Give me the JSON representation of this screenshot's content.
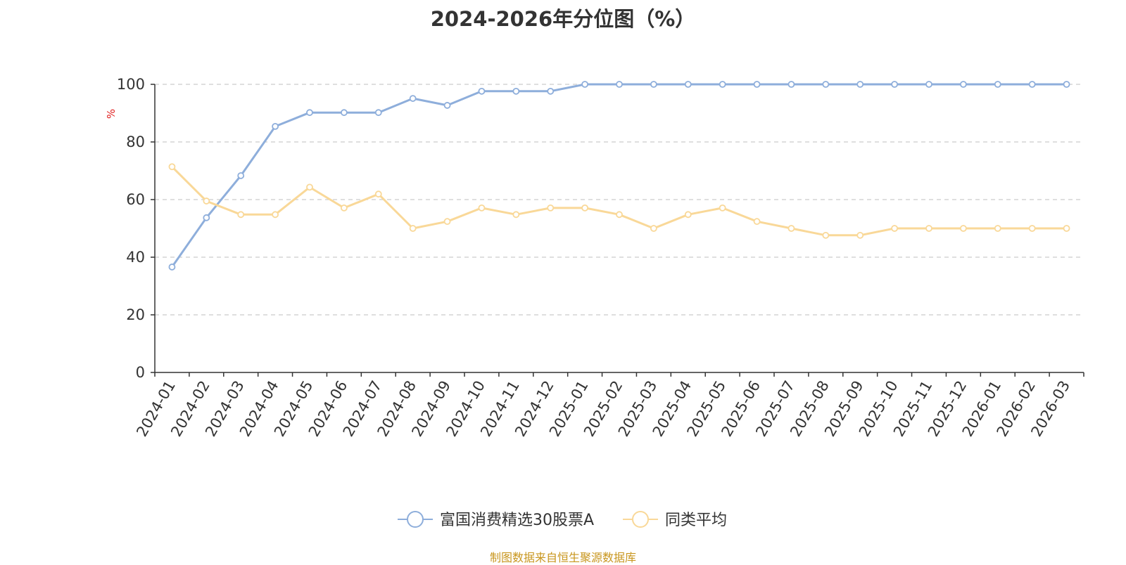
{
  "chart_data": {
    "type": "line",
    "title": "2024-2026年分位图（%）",
    "ylabel": "%",
    "xlabel": "",
    "ylim": [
      0,
      100
    ],
    "yticks": [
      0,
      20,
      40,
      60,
      80,
      100
    ],
    "grid": "horizontal dashed",
    "legend_position": "bottom",
    "categories": [
      "2024-01",
      "2024-02",
      "2024-03",
      "2024-04",
      "2024-05",
      "2024-06",
      "2024-07",
      "2024-08",
      "2024-09",
      "2024-10",
      "2024-11",
      "2024-12",
      "2025-01",
      "2025-02",
      "2025-03",
      "2025-04",
      "2025-05",
      "2025-06",
      "2025-07",
      "2025-08",
      "2025-09",
      "2025-10",
      "2025-11",
      "2025-12",
      "2026-01",
      "2026-02",
      "2026-03"
    ],
    "series": [
      {
        "name": "富国消费精选30股票A",
        "color": "#8eaedb",
        "values": [
          36.6,
          53.7,
          68.3,
          85.4,
          90.2,
          90.2,
          90.2,
          95.1,
          92.7,
          97.6,
          97.6,
          97.6,
          100,
          100,
          100,
          100,
          100,
          100,
          100,
          100,
          100,
          100,
          100,
          100,
          100,
          100,
          100
        ]
      },
      {
        "name": "同类平均",
        "color": "#f9d898",
        "values": [
          71.4,
          59.5,
          54.8,
          54.8,
          64.3,
          57.1,
          61.9,
          50.0,
          52.4,
          57.1,
          54.8,
          57.1,
          57.1,
          54.8,
          50.0,
          54.8,
          57.1,
          52.4,
          50.0,
          47.6,
          47.6,
          50.0,
          50.0,
          50.0,
          50.0,
          50.0,
          50.0
        ]
      }
    ]
  },
  "source_text": "制图数据来自恒生聚源数据库",
  "colors": {
    "axis": "#333333",
    "grid": "#cccccc",
    "ylabel": "#e02020",
    "source": "#c8961e"
  }
}
